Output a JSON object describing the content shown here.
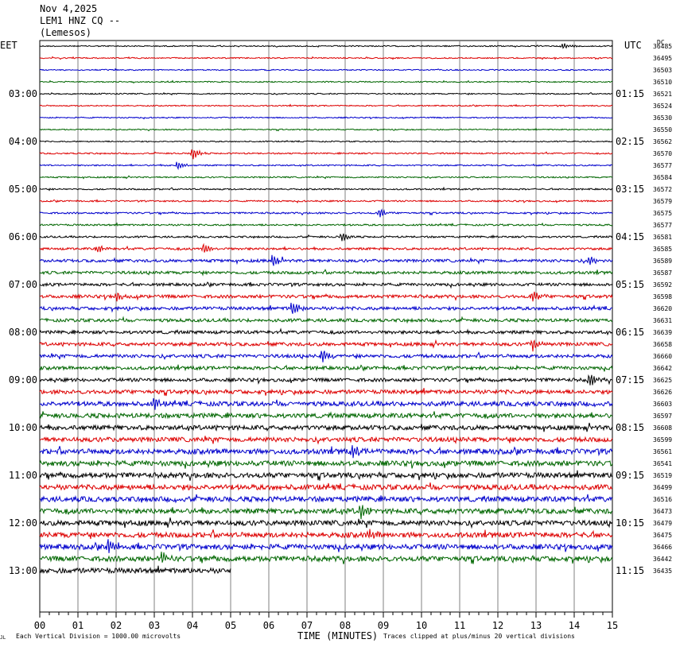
{
  "header": {
    "date": "Nov 4,2025",
    "station": "LEM1 HNZ CQ --",
    "location": "(Lemesos)"
  },
  "left_timezone": "EET",
  "right_timezone": "UTC",
  "right_unit": "DC",
  "footer": {
    "scale_note": "Each Vertical Division = 1000.00 microvolts",
    "clip_note": "Traces clipped at plus/minus 20 vertical divisions",
    "corner_mark": "JL"
  },
  "colors": {
    "trace_cycle": [
      "#000000",
      "#dd0000",
      "#0000cc",
      "#006600"
    ],
    "grid": "#808080"
  },
  "chart_data": {
    "type": "line",
    "xlabel": "TIME (MINUTES)",
    "xlim": [
      0,
      15
    ],
    "x_ticks": [
      "00",
      "01",
      "02",
      "03",
      "04",
      "05",
      "06",
      "07",
      "08",
      "09",
      "10",
      "11",
      "12",
      "13",
      "14",
      "15"
    ],
    "left_hour_labels": [
      "03:00",
      "04:00",
      "05:00",
      "06:00",
      "07:00",
      "08:00",
      "09:00",
      "10:00",
      "11:00",
      "12:00",
      "13:00"
    ],
    "right_hour_labels": [
      "01:15",
      "02:15",
      "03:15",
      "04:15",
      "05:15",
      "06:15",
      "07:15",
      "08:15",
      "09:15",
      "10:15",
      "11:15"
    ],
    "trace_count": 45,
    "last_trace_minutes": 5,
    "dc_offsets": [
      36485,
      36495,
      36503,
      36510,
      36521,
      36524,
      36530,
      36550,
      36562,
      36570,
      36577,
      36584,
      36572,
      36579,
      36575,
      36577,
      36581,
      36585,
      36589,
      36587,
      36592,
      36598,
      36620,
      36631,
      36639,
      36658,
      36660,
      36642,
      36625,
      36626,
      36603,
      36597,
      36608,
      36599,
      36561,
      36541,
      36519,
      36499,
      36516,
      36473,
      36479,
      36475,
      36466,
      36442,
      36435
    ],
    "noise_levels": [
      1,
      1,
      1,
      1,
      1,
      1,
      1,
      1,
      1,
      1.2,
      1.2,
      1.2,
      1.3,
      1.3,
      1.5,
      1.5,
      1.6,
      2,
      2.5,
      2.5,
      2.5,
      2.8,
      2.8,
      2.8,
      2.8,
      3,
      3,
      3,
      3,
      3.5,
      4,
      4,
      4,
      4,
      4.5,
      4.5,
      4.5,
      4.5,
      4.5,
      4.5,
      4.5,
      4.5,
      4.5,
      4.5,
      4.5
    ],
    "events": [
      {
        "trace": 0,
        "minute": 13.7,
        "amp": 3
      },
      {
        "trace": 9,
        "minute": 4.0,
        "amp": 6
      },
      {
        "trace": 10,
        "minute": 3.6,
        "amp": 4
      },
      {
        "trace": 14,
        "minute": 8.9,
        "amp": 4
      },
      {
        "trace": 16,
        "minute": 7.9,
        "amp": 5
      },
      {
        "trace": 17,
        "minute": 1.5,
        "amp": 4
      },
      {
        "trace": 17,
        "minute": 4.3,
        "amp": 5
      },
      {
        "trace": 18,
        "minute": 6.1,
        "amp": 6
      },
      {
        "trace": 18,
        "minute": 14.4,
        "amp": 5
      },
      {
        "trace": 21,
        "minute": 2.0,
        "amp": 5
      },
      {
        "trace": 21,
        "minute": 12.9,
        "amp": 6
      },
      {
        "trace": 22,
        "minute": 6.6,
        "amp": 8
      },
      {
        "trace": 25,
        "minute": 12.9,
        "amp": 6
      },
      {
        "trace": 26,
        "minute": 7.4,
        "amp": 7
      },
      {
        "trace": 28,
        "minute": 14.4,
        "amp": 7
      },
      {
        "trace": 30,
        "minute": 3.0,
        "amp": 5
      },
      {
        "trace": 34,
        "minute": 8.2,
        "amp": 6
      },
      {
        "trace": 39,
        "minute": 8.4,
        "amp": 7
      },
      {
        "trace": 41,
        "minute": 8.6,
        "amp": 5
      },
      {
        "trace": 42,
        "minute": 1.8,
        "amp": 9
      },
      {
        "trace": 43,
        "minute": 3.2,
        "amp": 6
      }
    ]
  }
}
